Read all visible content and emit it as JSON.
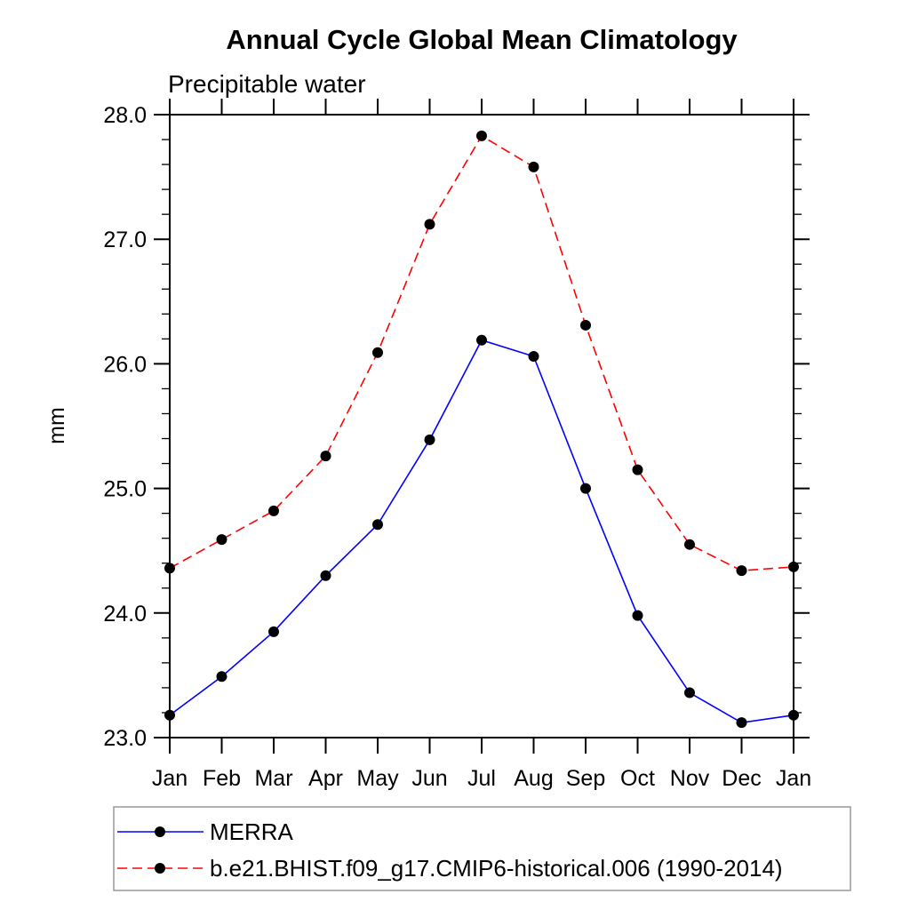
{
  "title": "Annual Cycle Global Mean Climatology",
  "subtitle": "Precipitable water",
  "ylabel": "mm",
  "chart_data": {
    "type": "line",
    "categories": [
      "Jan",
      "Feb",
      "Mar",
      "Apr",
      "May",
      "Jun",
      "Jul",
      "Aug",
      "Sep",
      "Oct",
      "Nov",
      "Dec",
      "Jan"
    ],
    "series": [
      {
        "name": "MERRA",
        "color": "#0000ff",
        "line_style": "solid",
        "marker": "filled-circle",
        "marker_color": "#000000",
        "values": [
          23.18,
          23.49,
          23.85,
          24.3,
          24.71,
          25.39,
          26.19,
          26.06,
          25.0,
          23.98,
          23.36,
          23.12,
          23.18
        ]
      },
      {
        "name": "b.e21.BHIST.f09_g17.CMIP6-historical.006 (1990-2014)",
        "color": "#ff0000",
        "line_style": "dashed",
        "marker": "filled-circle",
        "marker_color": "#000000",
        "values": [
          24.36,
          24.59,
          24.82,
          25.26,
          26.09,
          27.12,
          27.83,
          27.58,
          26.31,
          25.15,
          24.55,
          24.34,
          24.37
        ]
      }
    ],
    "title": "Annual Cycle Global Mean Climatology",
    "subtitle": "Precipitable water",
    "xlabel": "",
    "ylabel": "mm",
    "ylim": [
      23.0,
      28.0
    ],
    "ytick_major_step": 1.0,
    "ytick_minor_step": 0.2,
    "ytick_labels": [
      "23.0",
      "24.0",
      "25.0",
      "26.0",
      "27.0",
      "28.0"
    ],
    "grid": false,
    "legend_position": "bottom",
    "tick_style": "outward-both-sides"
  },
  "colors": {
    "background": "#ffffff",
    "axis": "#000000",
    "marker": "#000000",
    "merra_line": "#0000ff",
    "model_line": "#ff0000",
    "legend_border": "#999999"
  }
}
